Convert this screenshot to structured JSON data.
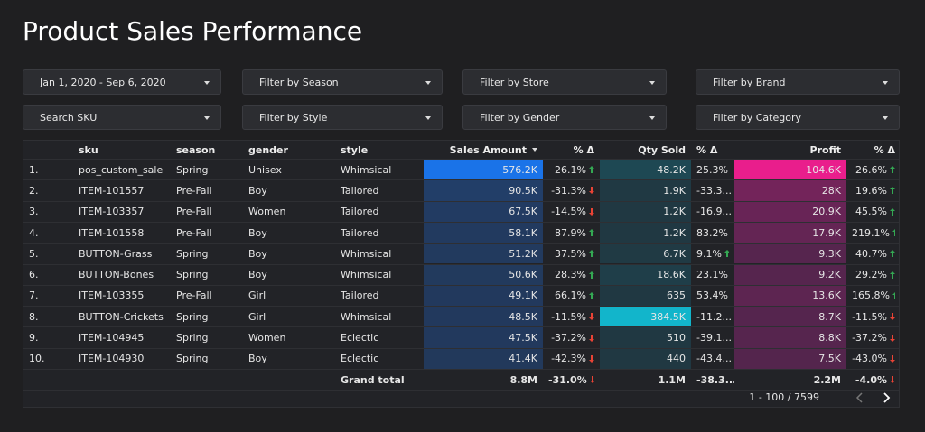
{
  "header": {
    "title": "Product Sales Performance"
  },
  "filters": [
    [
      "Jan 1, 2020 - Sep 6, 2020",
      "Filter by Season",
      "Filter by Store",
      "Filter by Brand"
    ],
    [
      "Search SKU",
      "Filter by Style",
      "Filter by Gender",
      "Filter by Category"
    ]
  ],
  "table": {
    "columns": [
      "sku",
      "season",
      "gender",
      "style",
      "Sales Amount",
      "% Δ",
      "Qty Sold",
      "% Δ",
      "Profit",
      "% Δ"
    ],
    "rows": [
      [
        "1.",
        "pos_custom_sale",
        "Spring",
        "Unisex",
        "Whimsical",
        "576.2K",
        "26.1%",
        "48.2K",
        "25.3%",
        "104.6K",
        "26.6%"
      ],
      [
        "2.",
        "ITEM-101557",
        "Pre-Fall",
        "Boy",
        "Tailored",
        "90.5K",
        "-31.3%",
        "1.9K",
        "-33.3...",
        "28K",
        "19.6%"
      ],
      [
        "3.",
        "ITEM-103357",
        "Pre-Fall",
        "Women",
        "Tailored",
        "67.5K",
        "-14.5%",
        "1.2K",
        "-16.9...",
        "20.9K",
        "45.5%"
      ],
      [
        "4.",
        "ITEM-101558",
        "Pre-Fall",
        "Boy",
        "Tailored",
        "58.1K",
        "87.9%",
        "1.2K",
        "83.2%",
        "17.9K",
        "219.1%"
      ],
      [
        "5.",
        "BUTTON-Grass",
        "Spring",
        "Boy",
        "Whimsical",
        "51.2K",
        "37.5%",
        "6.7K",
        "9.1%",
        "9.3K",
        "40.7%"
      ],
      [
        "6.",
        "BUTTON-Bones",
        "Spring",
        "Boy",
        "Whimsical",
        "50.6K",
        "28.3%",
        "18.6K",
        "23.1%",
        "9.2K",
        "29.2%"
      ],
      [
        "7.",
        "ITEM-103355",
        "Pre-Fall",
        "Girl",
        "Tailored",
        "49.1K",
        "66.1%",
        "635",
        "53.4%",
        "13.6K",
        "165.8%"
      ],
      [
        "8.",
        "BUTTON-Crickets",
        "Spring",
        "Girl",
        "Whimsical",
        "48.5K",
        "-11.5%",
        "384.5K",
        "-11.2...",
        "8.7K",
        "-11.5%"
      ],
      [
        "9.",
        "ITEM-104945",
        "Spring",
        "Women",
        "Eclectic",
        "47.5K",
        "-37.2%",
        "510",
        "-39.1...",
        "8.8K",
        "-37.2%"
      ],
      [
        "10.",
        "ITEM-104930",
        "Spring",
        "Boy",
        "Eclectic",
        "41.4K",
        "-42.3%",
        "440",
        "-43.4...",
        "7.5K",
        "-43.0%"
      ]
    ],
    "total": [
      "Grand total",
      "8.8M",
      "-31.0%",
      "1.1M",
      "-38.3...",
      "2.2M",
      "-4.0%"
    ],
    "pagination": "1 - 100 / 7599"
  }
}
